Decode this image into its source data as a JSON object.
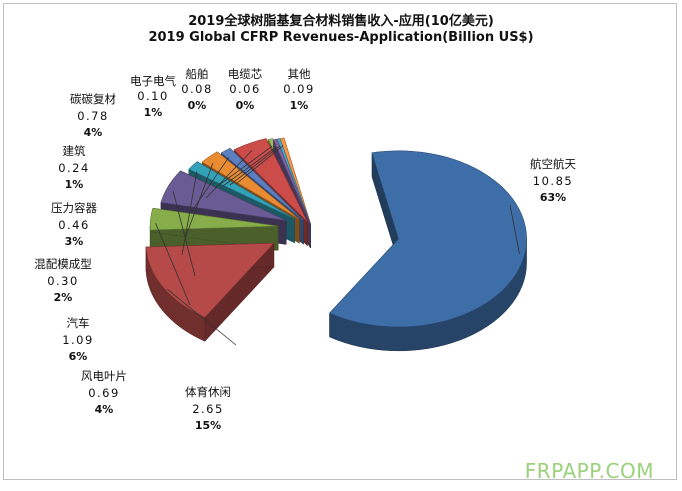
{
  "title_cn": "2019全球树脂基复合材料销售收入-应用(10亿美元)",
  "title_en": "2019 Global CFRP Revenues-Application(Billion US$)",
  "watermark": "FRPAPP.COM",
  "chart_data": {
    "type": "pie",
    "title": "2019 Global CFRP Revenues-Application(Billion US$)",
    "slices": [
      {
        "name": "航空航天",
        "value": "10.85",
        "pct": "63%",
        "color": "#3e6ea8"
      },
      {
        "name": "体育休闲",
        "value": "2.65",
        "pct": "15%",
        "color": "#b54a48"
      },
      {
        "name": "风电叶片",
        "value": "0.69",
        "pct": "4%",
        "color": "#86ad4a"
      },
      {
        "name": "汽车",
        "value": "1.09",
        "pct": "6%",
        "color": "#6b5b94"
      },
      {
        "name": "混配模成型",
        "value": "0.30",
        "pct": "2%",
        "color": "#33a1b7"
      },
      {
        "name": "压力容器",
        "value": "0.46",
        "pct": "3%",
        "color": "#e98b31"
      },
      {
        "name": "建筑",
        "value": "0.24",
        "pct": "1%",
        "color": "#5b7fc0"
      },
      {
        "name": "碳碳复材",
        "value": "0.78",
        "pct": "4%",
        "color": "#cc4c49"
      },
      {
        "name": "电子电气",
        "value": "0.10",
        "pct": "1%",
        "color": "#9bbb59"
      },
      {
        "name": "船舶",
        "value": "0.08",
        "pct": "0%",
        "color": "#8064a2"
      },
      {
        "name": "电缆芯",
        "value": "0.06",
        "pct": "0%",
        "color": "#4bacc6"
      },
      {
        "name": "其他",
        "value": "0.09",
        "pct": "1%",
        "color": "#f79646"
      }
    ]
  }
}
